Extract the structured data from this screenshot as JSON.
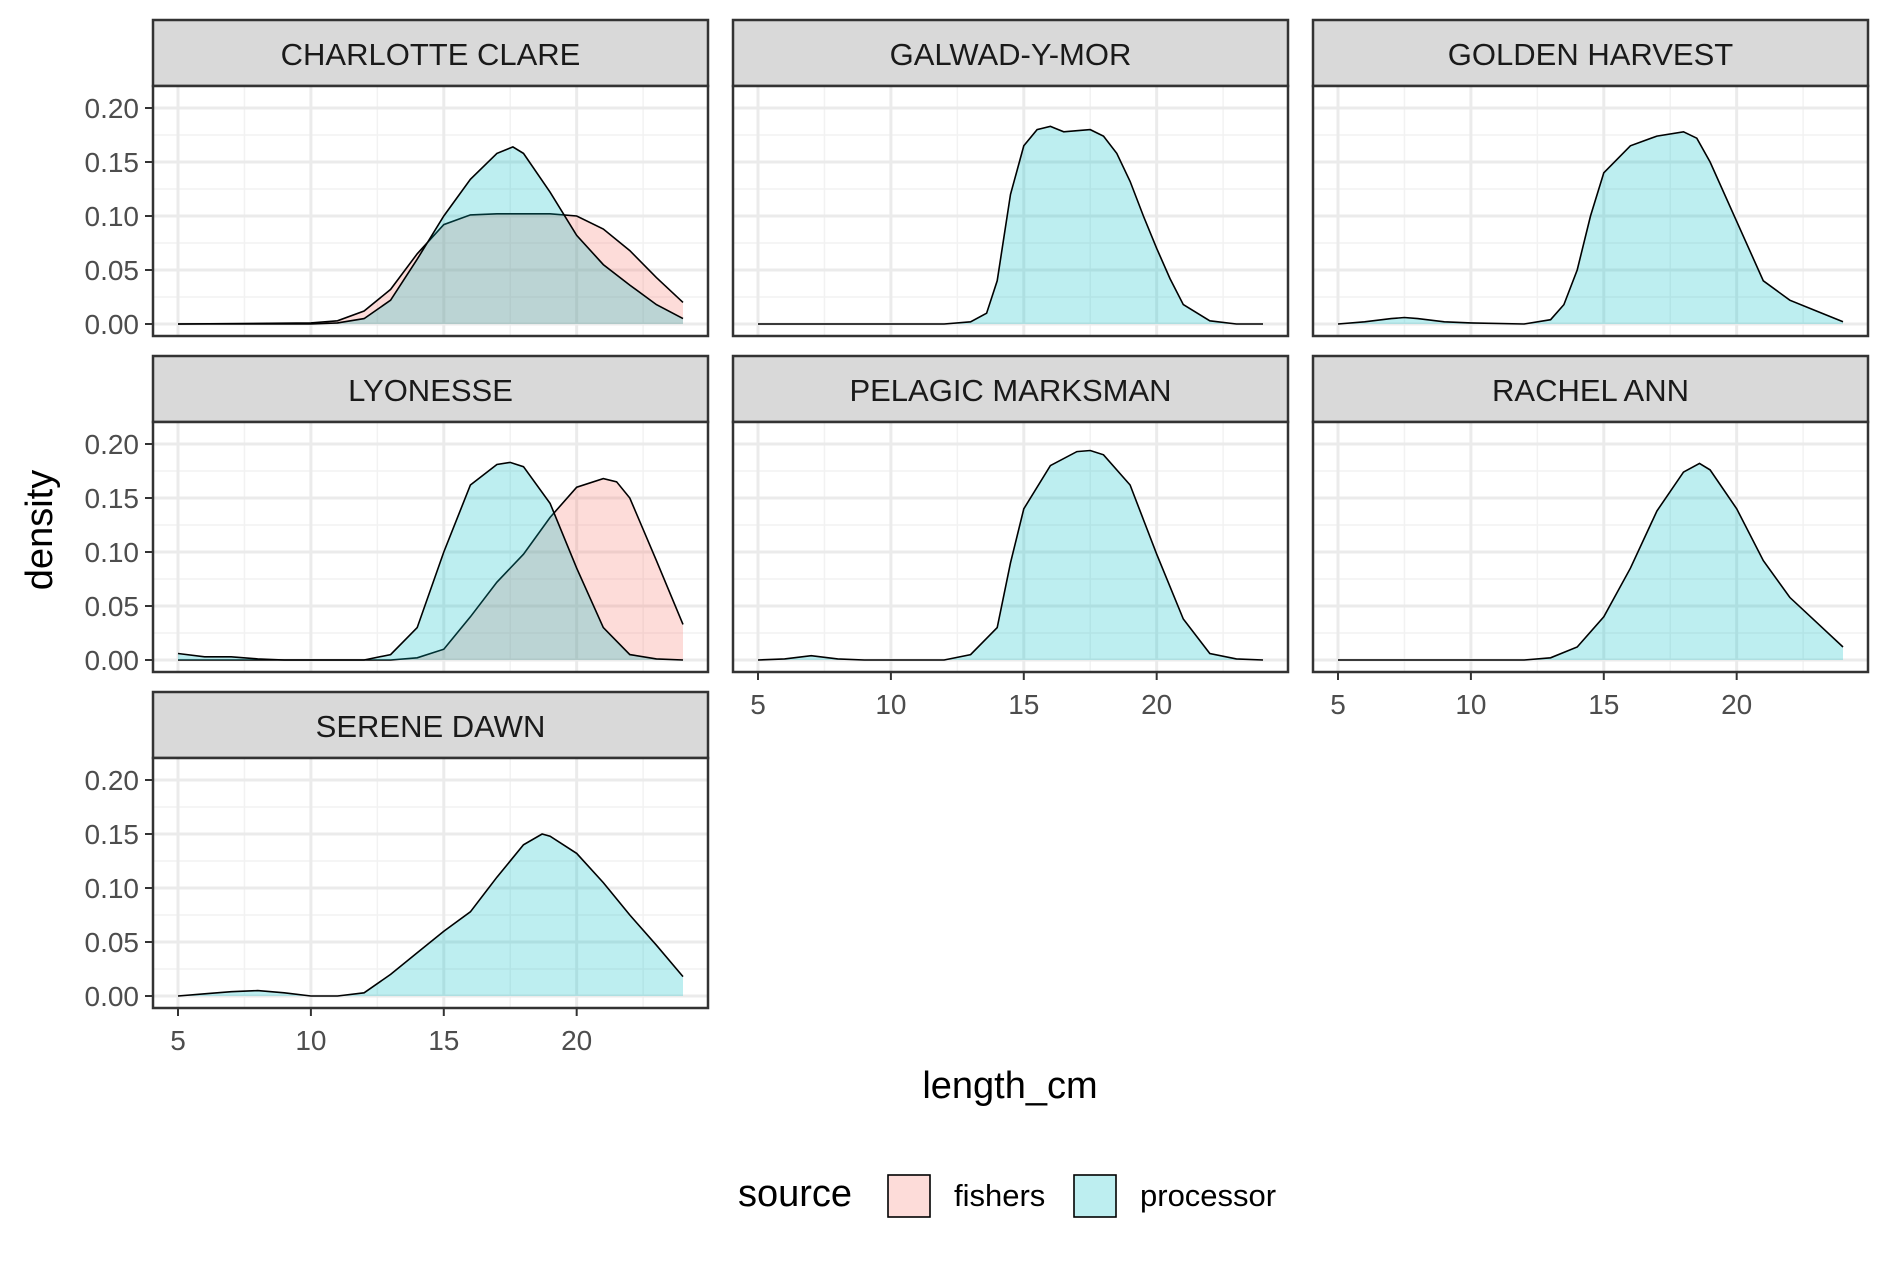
{
  "chart_data": {
    "type": "area",
    "subtype": "density",
    "title": "",
    "xlabel": "length_cm",
    "ylabel": "density",
    "xlim": [
      5,
      24
    ],
    "ylim": [
      0,
      0.2
    ],
    "x_ticks": [
      5,
      10,
      15,
      20
    ],
    "y_ticks": [
      "0.00",
      "0.05",
      "0.10",
      "0.15",
      "0.20"
    ],
    "grid": true,
    "legend": {
      "title": "source",
      "position": "bottom",
      "entries": [
        {
          "name": "fishers",
          "color": "#F8766D"
        },
        {
          "name": "processor",
          "color": "#00BFC4"
        }
      ]
    },
    "facets": [
      {
        "name": "CHARLOTTE CLARE",
        "series": [
          {
            "name": "fishers",
            "points": [
              [
                5,
                0
              ],
              [
                10,
                0.001
              ],
              [
                11,
                0.003
              ],
              [
                12,
                0.012
              ],
              [
                13,
                0.032
              ],
              [
                14,
                0.065
              ],
              [
                15,
                0.092
              ],
              [
                16,
                0.101
              ],
              [
                17,
                0.102
              ],
              [
                18,
                0.102
              ],
              [
                19,
                0.102
              ],
              [
                20,
                0.1
              ],
              [
                21,
                0.088
              ],
              [
                22,
                0.068
              ],
              [
                23,
                0.043
              ],
              [
                24,
                0.02
              ]
            ]
          },
          {
            "name": "processor",
            "points": [
              [
                5,
                0
              ],
              [
                10,
                0
              ],
              [
                11,
                0.001
              ],
              [
                12,
                0.005
              ],
              [
                13,
                0.022
              ],
              [
                14,
                0.06
              ],
              [
                15,
                0.1
              ],
              [
                16,
                0.134
              ],
              [
                17,
                0.158
              ],
              [
                17.6,
                0.164
              ],
              [
                18,
                0.158
              ],
              [
                19,
                0.122
              ],
              [
                20,
                0.082
              ],
              [
                21,
                0.055
              ],
              [
                22,
                0.036
              ],
              [
                23,
                0.018
              ],
              [
                24,
                0.005
              ]
            ]
          }
        ]
      },
      {
        "name": "GALWAD-Y-MOR",
        "series": [
          {
            "name": "processor",
            "points": [
              [
                5,
                0
              ],
              [
                12,
                0
              ],
              [
                13,
                0.002
              ],
              [
                13.6,
                0.01
              ],
              [
                14,
                0.04
              ],
              [
                14.5,
                0.12
              ],
              [
                15,
                0.165
              ],
              [
                15.5,
                0.18
              ],
              [
                16,
                0.183
              ],
              [
                16.5,
                0.178
              ],
              [
                17,
                0.179
              ],
              [
                17.5,
                0.18
              ],
              [
                18,
                0.174
              ],
              [
                18.5,
                0.158
              ],
              [
                19,
                0.132
              ],
              [
                19.5,
                0.1
              ],
              [
                20,
                0.07
              ],
              [
                20.5,
                0.042
              ],
              [
                21,
                0.018
              ],
              [
                22,
                0.003
              ],
              [
                23,
                0
              ],
              [
                24,
                0
              ]
            ]
          }
        ]
      },
      {
        "name": "GOLDEN HARVEST",
        "series": [
          {
            "name": "processor",
            "points": [
              [
                5,
                0
              ],
              [
                6,
                0.002
              ],
              [
                7,
                0.005
              ],
              [
                7.5,
                0.006
              ],
              [
                8,
                0.005
              ],
              [
                9,
                0.002
              ],
              [
                10,
                0.001
              ],
              [
                12,
                0
              ],
              [
                13,
                0.004
              ],
              [
                13.5,
                0.018
              ],
              [
                14,
                0.05
              ],
              [
                14.5,
                0.1
              ],
              [
                15,
                0.14
              ],
              [
                16,
                0.165
              ],
              [
                17,
                0.174
              ],
              [
                18,
                0.178
              ],
              [
                18.5,
                0.172
              ],
              [
                19,
                0.15
              ],
              [
                20,
                0.095
              ],
              [
                21,
                0.04
              ],
              [
                22,
                0.022
              ],
              [
                23,
                0.012
              ],
              [
                24,
                0.002
              ]
            ]
          }
        ]
      },
      {
        "name": "LYONESSE",
        "series": [
          {
            "name": "fishers",
            "points": [
              [
                5,
                0
              ],
              [
                13,
                0
              ],
              [
                14,
                0.002
              ],
              [
                15,
                0.01
              ],
              [
                16,
                0.04
              ],
              [
                17,
                0.072
              ],
              [
                18,
                0.098
              ],
              [
                19,
                0.132
              ],
              [
                20,
                0.16
              ],
              [
                21,
                0.168
              ],
              [
                21.5,
                0.165
              ],
              [
                22,
                0.15
              ],
              [
                23,
                0.092
              ],
              [
                24,
                0.033
              ]
            ]
          },
          {
            "name": "processor",
            "points": [
              [
                5,
                0.006
              ],
              [
                6,
                0.003
              ],
              [
                7,
                0.003
              ],
              [
                8,
                0.001
              ],
              [
                9,
                0
              ],
              [
                12,
                0
              ],
              [
                13,
                0.005
              ],
              [
                14,
                0.03
              ],
              [
                15,
                0.1
              ],
              [
                16,
                0.162
              ],
              [
                17,
                0.181
              ],
              [
                17.5,
                0.183
              ],
              [
                18,
                0.179
              ],
              [
                19,
                0.145
              ],
              [
                20,
                0.085
              ],
              [
                21,
                0.03
              ],
              [
                22,
                0.005
              ],
              [
                23,
                0.001
              ],
              [
                24,
                0
              ]
            ]
          }
        ]
      },
      {
        "name": "PELAGIC MARKSMAN",
        "series": [
          {
            "name": "processor",
            "points": [
              [
                5,
                0
              ],
              [
                6,
                0.001
              ],
              [
                7,
                0.004
              ],
              [
                8,
                0.001
              ],
              [
                9,
                0
              ],
              [
                12,
                0
              ],
              [
                13,
                0.005
              ],
              [
                14,
                0.03
              ],
              [
                14.5,
                0.09
              ],
              [
                15,
                0.14
              ],
              [
                16,
                0.18
              ],
              [
                17,
                0.193
              ],
              [
                17.5,
                0.194
              ],
              [
                18,
                0.19
              ],
              [
                19,
                0.162
              ],
              [
                20,
                0.098
              ],
              [
                21,
                0.038
              ],
              [
                22,
                0.006
              ],
              [
                23,
                0.001
              ],
              [
                24,
                0
              ]
            ]
          }
        ]
      },
      {
        "name": "RACHEL ANN",
        "series": [
          {
            "name": "processor",
            "points": [
              [
                5,
                0
              ],
              [
                12,
                0
              ],
              [
                13,
                0.002
              ],
              [
                14,
                0.012
              ],
              [
                15,
                0.04
              ],
              [
                16,
                0.085
              ],
              [
                17,
                0.138
              ],
              [
                18,
                0.174
              ],
              [
                18.6,
                0.182
              ],
              [
                19,
                0.176
              ],
              [
                20,
                0.14
              ],
              [
                21,
                0.092
              ],
              [
                22,
                0.058
              ],
              [
                23,
                0.035
              ],
              [
                24,
                0.012
              ]
            ]
          }
        ]
      },
      {
        "name": "SERENE DAWN",
        "series": [
          {
            "name": "processor",
            "points": [
              [
                5,
                0
              ],
              [
                6,
                0.002
              ],
              [
                7,
                0.004
              ],
              [
                8,
                0.005
              ],
              [
                9,
                0.003
              ],
              [
                10,
                0
              ],
              [
                11,
                0
              ],
              [
                12,
                0.003
              ],
              [
                13,
                0.02
              ],
              [
                14,
                0.04
              ],
              [
                15,
                0.06
              ],
              [
                16,
                0.078
              ],
              [
                17,
                0.11
              ],
              [
                18,
                0.14
              ],
              [
                18.7,
                0.15
              ],
              [
                19,
                0.148
              ],
              [
                20,
                0.132
              ],
              [
                21,
                0.105
              ],
              [
                22,
                0.075
              ],
              [
                23,
                0.047
              ],
              [
                24,
                0.018
              ]
            ]
          }
        ]
      }
    ]
  }
}
